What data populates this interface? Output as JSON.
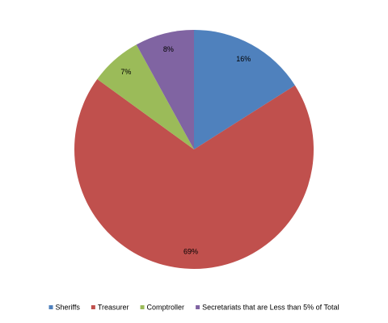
{
  "chart_data": {
    "type": "pie",
    "categories": [
      "Sheriffs",
      "Treasurer",
      "Comptroller",
      "Secretariats that are Less than 5% of Total"
    ],
    "values": [
      16,
      69,
      7,
      8
    ],
    "value_labels": [
      "16%",
      "69%",
      "7%",
      "8%"
    ],
    "colors": [
      "#4f81bd",
      "#c0504d",
      "#9bbb59",
      "#8064a2"
    ],
    "legend": "bottom"
  }
}
